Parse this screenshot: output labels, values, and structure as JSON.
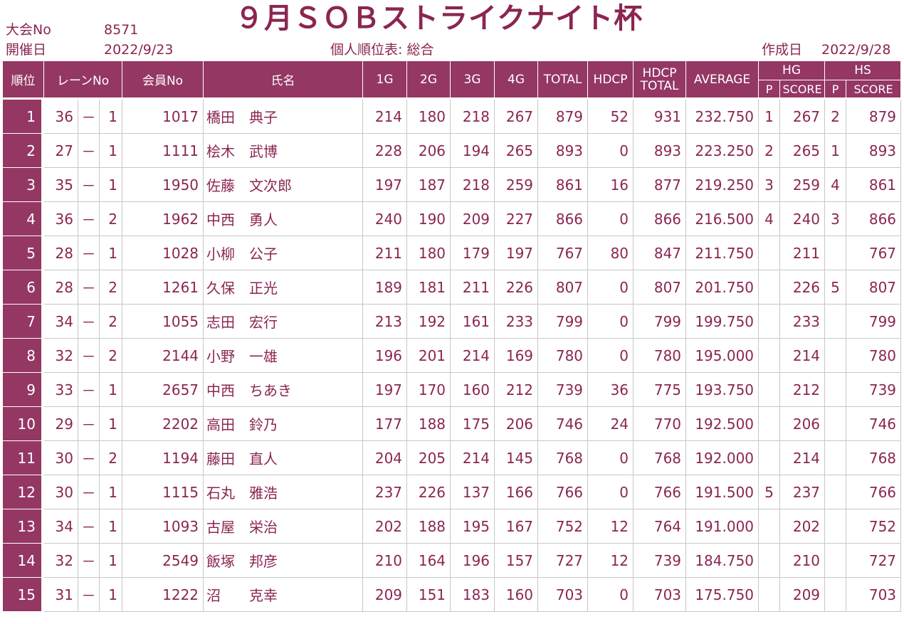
{
  "header": {
    "title": "９月ＳＯＢストライクナイト杯",
    "tournament_no_label": "大会No",
    "tournament_no": "8571",
    "date_label": "開催日",
    "date": "2022/9/23",
    "table_name": "個人順位表: 総合",
    "created_label": "作成日",
    "created_date": "2022/9/28"
  },
  "columns": {
    "rank": "順位",
    "lane": "レーンNo",
    "member_no": "会員No",
    "name": "氏名",
    "g1": "1G",
    "g2": "2G",
    "g3": "3G",
    "g4": "4G",
    "total": "TOTAL",
    "hdcp": "HDCP",
    "hdcp_total_1": "HDCP",
    "hdcp_total_2": "TOTAL",
    "average": "AVERAGE",
    "hg": "HG",
    "hs": "HS",
    "p": "P",
    "score": "SCORE"
  },
  "rows": [
    {
      "rank": "1",
      "lane": "36",
      "sep": "－",
      "pos": "1",
      "member": "1017",
      "name": "橋田　典子",
      "g1": "214",
      "g2": "180",
      "g3": "218",
      "g4": "267",
      "total": "879",
      "hdcp": "52",
      "hdcp_total": "931",
      "avg": "232.750",
      "hg_p": "1",
      "hg_score": "267",
      "hs_p": "2",
      "hs_score": "879"
    },
    {
      "rank": "2",
      "lane": "27",
      "sep": "－",
      "pos": "1",
      "member": "1111",
      "name": "桧木　武博",
      "g1": "228",
      "g2": "206",
      "g3": "194",
      "g4": "265",
      "total": "893",
      "hdcp": "0",
      "hdcp_total": "893",
      "avg": "223.250",
      "hg_p": "2",
      "hg_score": "265",
      "hs_p": "1",
      "hs_score": "893"
    },
    {
      "rank": "3",
      "lane": "35",
      "sep": "－",
      "pos": "1",
      "member": "1950",
      "name": "佐藤　文次郎",
      "g1": "197",
      "g2": "187",
      "g3": "218",
      "g4": "259",
      "total": "861",
      "hdcp": "16",
      "hdcp_total": "877",
      "avg": "219.250",
      "hg_p": "3",
      "hg_score": "259",
      "hs_p": "4",
      "hs_score": "861"
    },
    {
      "rank": "4",
      "lane": "36",
      "sep": "－",
      "pos": "2",
      "member": "1962",
      "name": "中西　勇人",
      "g1": "240",
      "g2": "190",
      "g3": "209",
      "g4": "227",
      "total": "866",
      "hdcp": "0",
      "hdcp_total": "866",
      "avg": "216.500",
      "hg_p": "4",
      "hg_score": "240",
      "hs_p": "3",
      "hs_score": "866"
    },
    {
      "rank": "5",
      "lane": "28",
      "sep": "－",
      "pos": "1",
      "member": "1028",
      "name": "小柳　公子",
      "g1": "211",
      "g2": "180",
      "g3": "179",
      "g4": "197",
      "total": "767",
      "hdcp": "80",
      "hdcp_total": "847",
      "avg": "211.750",
      "hg_p": "",
      "hg_score": "211",
      "hs_p": "",
      "hs_score": "767"
    },
    {
      "rank": "6",
      "lane": "28",
      "sep": "－",
      "pos": "2",
      "member": "1261",
      "name": "久保　正光",
      "g1": "189",
      "g2": "181",
      "g3": "211",
      "g4": "226",
      "total": "807",
      "hdcp": "0",
      "hdcp_total": "807",
      "avg": "201.750",
      "hg_p": "",
      "hg_score": "226",
      "hs_p": "5",
      "hs_score": "807"
    },
    {
      "rank": "7",
      "lane": "34",
      "sep": "－",
      "pos": "2",
      "member": "1055",
      "name": "志田　宏行",
      "g1": "213",
      "g2": "192",
      "g3": "161",
      "g4": "233",
      "total": "799",
      "hdcp": "0",
      "hdcp_total": "799",
      "avg": "199.750",
      "hg_p": "",
      "hg_score": "233",
      "hs_p": "",
      "hs_score": "799"
    },
    {
      "rank": "8",
      "lane": "32",
      "sep": "－",
      "pos": "2",
      "member": "2144",
      "name": "小野　一雄",
      "g1": "196",
      "g2": "201",
      "g3": "214",
      "g4": "169",
      "total": "780",
      "hdcp": "0",
      "hdcp_total": "780",
      "avg": "195.000",
      "hg_p": "",
      "hg_score": "214",
      "hs_p": "",
      "hs_score": "780"
    },
    {
      "rank": "9",
      "lane": "33",
      "sep": "－",
      "pos": "1",
      "member": "2657",
      "name": "中西　ちあき",
      "g1": "197",
      "g2": "170",
      "g3": "160",
      "g4": "212",
      "total": "739",
      "hdcp": "36",
      "hdcp_total": "775",
      "avg": "193.750",
      "hg_p": "",
      "hg_score": "212",
      "hs_p": "",
      "hs_score": "739"
    },
    {
      "rank": "10",
      "lane": "29",
      "sep": "－",
      "pos": "1",
      "member": "2202",
      "name": "高田　鈴乃",
      "g1": "177",
      "g2": "188",
      "g3": "175",
      "g4": "206",
      "total": "746",
      "hdcp": "24",
      "hdcp_total": "770",
      "avg": "192.500",
      "hg_p": "",
      "hg_score": "206",
      "hs_p": "",
      "hs_score": "746"
    },
    {
      "rank": "11",
      "lane": "30",
      "sep": "－",
      "pos": "2",
      "member": "1194",
      "name": "藤田　直人",
      "g1": "204",
      "g2": "205",
      "g3": "214",
      "g4": "145",
      "total": "768",
      "hdcp": "0",
      "hdcp_total": "768",
      "avg": "192.000",
      "hg_p": "",
      "hg_score": "214",
      "hs_p": "",
      "hs_score": "768"
    },
    {
      "rank": "12",
      "lane": "30",
      "sep": "－",
      "pos": "1",
      "member": "1115",
      "name": "石丸　雅浩",
      "g1": "237",
      "g2": "226",
      "g3": "137",
      "g4": "166",
      "total": "766",
      "hdcp": "0",
      "hdcp_total": "766",
      "avg": "191.500",
      "hg_p": "5",
      "hg_score": "237",
      "hs_p": "",
      "hs_score": "766"
    },
    {
      "rank": "13",
      "lane": "34",
      "sep": "－",
      "pos": "1",
      "member": "1093",
      "name": "古屋　栄治",
      "g1": "202",
      "g2": "188",
      "g3": "195",
      "g4": "167",
      "total": "752",
      "hdcp": "12",
      "hdcp_total": "764",
      "avg": "191.000",
      "hg_p": "",
      "hg_score": "202",
      "hs_p": "",
      "hs_score": "752"
    },
    {
      "rank": "14",
      "lane": "32",
      "sep": "－",
      "pos": "1",
      "member": "2549",
      "name": "飯塚　邦彦",
      "g1": "210",
      "g2": "164",
      "g3": "196",
      "g4": "157",
      "total": "727",
      "hdcp": "12",
      "hdcp_total": "739",
      "avg": "184.750",
      "hg_p": "",
      "hg_score": "210",
      "hs_p": "",
      "hs_score": "727"
    },
    {
      "rank": "15",
      "lane": "31",
      "sep": "－",
      "pos": "1",
      "member": "1222",
      "name": "沼　　克幸",
      "g1": "209",
      "g2": "151",
      "g3": "183",
      "g4": "160",
      "total": "703",
      "hdcp": "0",
      "hdcp_total": "703",
      "avg": "175.750",
      "hg_p": "",
      "hg_score": "209",
      "hs_p": "",
      "hs_score": "703"
    }
  ]
}
